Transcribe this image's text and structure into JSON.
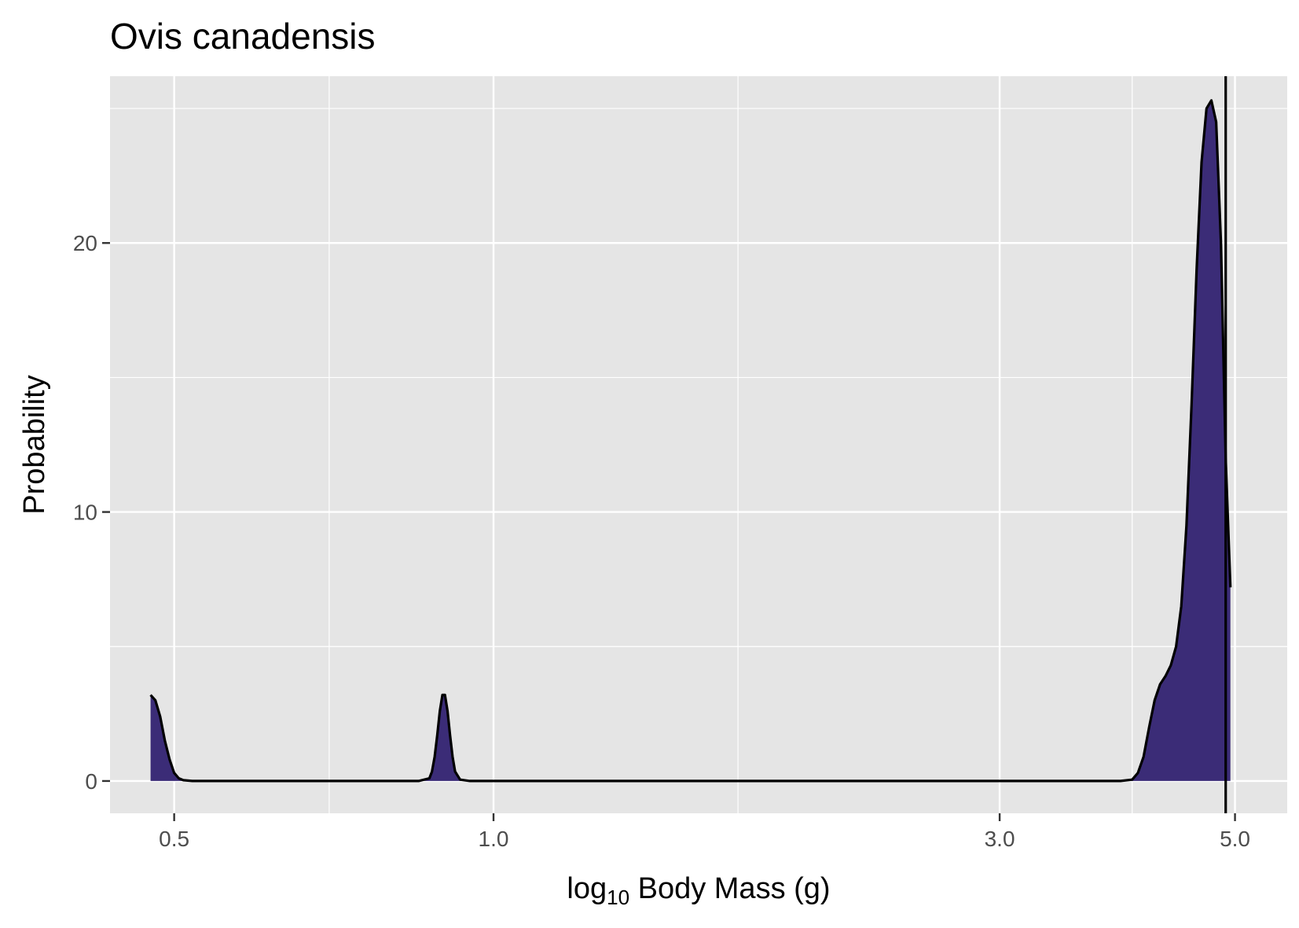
{
  "chart_data": {
    "type": "area",
    "title": "Ovis canadensis",
    "xlabel": "log10 Body Mass (g)",
    "xlabel_base": "log",
    "xlabel_sub": "10",
    "xlabel_rest": " Body Mass (g)",
    "ylabel": "Probability",
    "x_scale": "log",
    "xlim": [
      0.435,
      5.6
    ],
    "ylim": [
      -1.2,
      26.2
    ],
    "x_ticks": [
      0.5,
      1.0,
      3.0,
      5.0
    ],
    "x_tick_labels": [
      "0.5",
      "1.0",
      "3.0",
      "5.0"
    ],
    "x_minor_gridlines": [
      0.7,
      1.7,
      4.0
    ],
    "y_ticks": [
      0,
      10,
      20
    ],
    "y_tick_labels": [
      "0",
      "10",
      "20"
    ],
    "y_minor_gridlines": [
      5,
      15,
      25
    ],
    "grid": true,
    "vline": 4.9,
    "series": [
      {
        "fill": "#3b2c77",
        "line": "#000000",
        "x": [
          0.475,
          0.48,
          0.485,
          0.49,
          0.495,
          0.5,
          0.505,
          0.51,
          0.52,
          0.55,
          0.7,
          0.85,
          0.87,
          0.875,
          0.88,
          0.885,
          0.89,
          0.895,
          0.9,
          0.905,
          0.91,
          0.915,
          0.92,
          0.93,
          0.95,
          1.0,
          2.0,
          3.0,
          3.9,
          4.0,
          4.05,
          4.1,
          4.15,
          4.2,
          4.25,
          4.3,
          4.35,
          4.4,
          4.45,
          4.5,
          4.55,
          4.6,
          4.65,
          4.7,
          4.75,
          4.8,
          4.85,
          4.9,
          4.95
        ],
        "y": [
          3.2,
          3.0,
          2.4,
          1.5,
          0.8,
          0.3,
          0.1,
          0.03,
          0.0,
          0.0,
          0.0,
          0.0,
          0.1,
          0.35,
          0.9,
          1.7,
          2.6,
          3.2,
          3.2,
          2.6,
          1.7,
          0.9,
          0.35,
          0.05,
          0.0,
          0.0,
          0.0,
          0.0,
          0.0,
          0.05,
          0.3,
          0.9,
          2.0,
          3.0,
          3.6,
          3.9,
          4.3,
          5.0,
          6.5,
          9.5,
          14.0,
          19.0,
          23.0,
          25.0,
          25.3,
          24.5,
          20.0,
          12.0,
          7.2
        ]
      }
    ]
  }
}
